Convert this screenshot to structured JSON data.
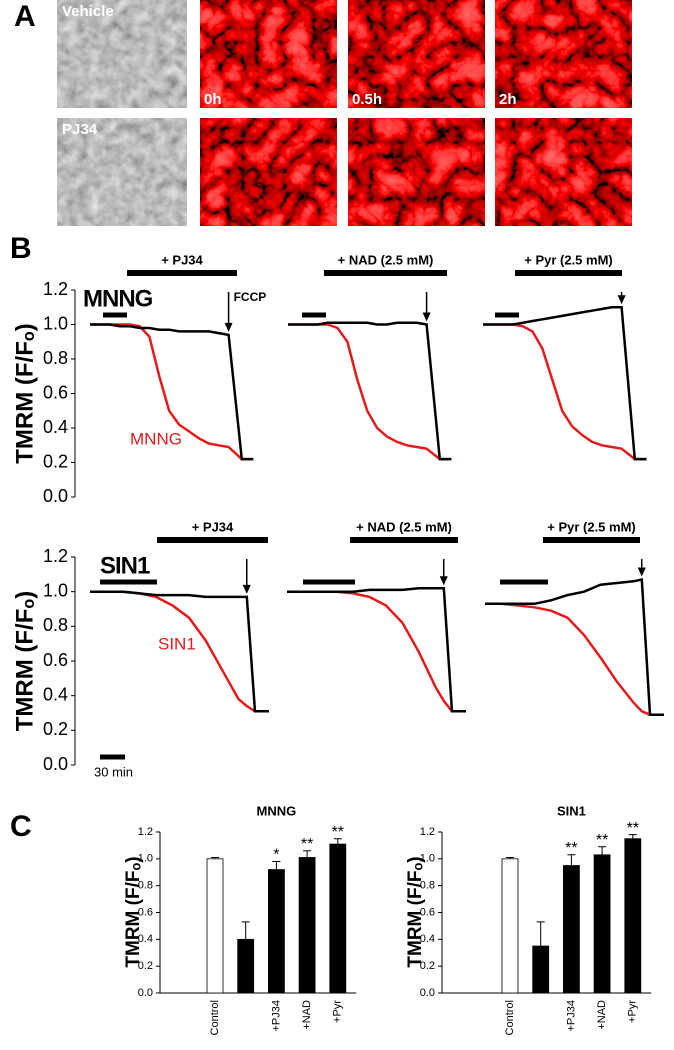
{
  "panel_labels": [
    "A",
    "B",
    "C"
  ],
  "panel_a": {
    "rows": [
      {
        "label": "Vehicle",
        "times": [
          "0h",
          "0.5h",
          "2h"
        ]
      },
      {
        "label": "PJ34"
      }
    ]
  },
  "scale_bar": "30 min",
  "chart_data": [
    {
      "type": "line",
      "title": "MNNG",
      "y_label": "TMRM (F/Fₒ)",
      "treatment": "+ PJ34",
      "arrow_label": "FCCP",
      "x": [
        0,
        12,
        24,
        36,
        48,
        60,
        72,
        84,
        96,
        108,
        120,
        132,
        144,
        156,
        168,
        184,
        198
      ],
      "xlim": [
        0,
        200
      ],
      "ylim": [
        0,
        1.2
      ],
      "yticks": [
        {
          "value": 0,
          "label": "0.0"
        },
        0.2,
        0.4,
        0.6,
        0.8,
        {
          "value": 1,
          "label": "1.0"
        },
        1.2
      ],
      "series": [
        {
          "name": "MNNG",
          "color": "#e41a1c",
          "values": [
            1.0,
            1.0,
            1.0,
            1.0,
            1.0,
            0.99,
            0.93,
            0.7,
            0.5,
            0.42,
            0.38,
            0.34,
            0.31,
            0.3,
            0.29,
            0.22,
            0.22
          ]
        },
        {
          "color": "#000000",
          "values": [
            1.0,
            1.0,
            1.0,
            0.99,
            0.99,
            0.98,
            0.98,
            0.97,
            0.97,
            0.96,
            0.96,
            0.96,
            0.96,
            0.95,
            0.94,
            0.22,
            0.22
          ]
        }
      ]
    },
    {
      "type": "line",
      "treatment": "+ NAD (2.5 mM)",
      "x": [
        0,
        12,
        24,
        36,
        48,
        60,
        72,
        84,
        96,
        108,
        120,
        132,
        144,
        156,
        168,
        184,
        198
      ],
      "xlim": [
        0,
        200
      ],
      "ylim": [
        0,
        1.2
      ],
      "series": [
        {
          "color": "#e41a1c",
          "values": [
            1.0,
            1.0,
            1.0,
            1.0,
            1.0,
            0.98,
            0.9,
            0.68,
            0.5,
            0.4,
            0.35,
            0.32,
            0.3,
            0.29,
            0.28,
            0.22,
            0.22
          ]
        },
        {
          "color": "#000000",
          "values": [
            1.0,
            1.0,
            1.0,
            1.0,
            1.01,
            1.01,
            1.01,
            1.01,
            1.01,
            1.0,
            1.0,
            1.01,
            1.01,
            1.01,
            1.0,
            0.22,
            0.22
          ]
        }
      ]
    },
    {
      "type": "line",
      "treatment": "+ Pyr (2.5 mM)",
      "x": [
        0,
        12,
        24,
        36,
        48,
        60,
        72,
        84,
        96,
        108,
        120,
        132,
        144,
        156,
        168,
        184,
        198
      ],
      "xlim": [
        0,
        200
      ],
      "ylim": [
        0,
        1.2
      ],
      "series": [
        {
          "color": "#e41a1c",
          "values": [
            1.0,
            1.0,
            1.0,
            1.0,
            0.99,
            0.96,
            0.86,
            0.68,
            0.5,
            0.41,
            0.36,
            0.32,
            0.3,
            0.29,
            0.28,
            0.22,
            0.22
          ]
        },
        {
          "color": "#000000",
          "values": [
            1.0,
            1.0,
            1.0,
            1.0,
            1.01,
            1.02,
            1.03,
            1.04,
            1.05,
            1.06,
            1.07,
            1.08,
            1.09,
            1.1,
            1.1,
            0.22,
            0.22
          ]
        }
      ]
    },
    {
      "type": "line",
      "title": "SIN1",
      "y_label": "TMRM (F/Fₒ)",
      "treatment": "+ PJ34",
      "x": [
        0,
        20,
        40,
        60,
        80,
        100,
        120,
        140,
        160,
        180,
        190,
        200,
        217
      ],
      "xlim": [
        0,
        220
      ],
      "ylim": [
        0,
        1.2
      ],
      "yticks": [
        {
          "value": 0,
          "label": "0.0"
        },
        0.2,
        0.4,
        0.6,
        0.8,
        {
          "value": 1,
          "label": "1.0"
        },
        1.2
      ],
      "series": [
        {
          "name": "SIN1",
          "color": "#e41a1c",
          "values": [
            1.0,
            1.0,
            1.0,
            0.99,
            0.97,
            0.92,
            0.85,
            0.72,
            0.55,
            0.38,
            0.34,
            0.31,
            0.31
          ]
        },
        {
          "color": "#000000",
          "values": [
            1.0,
            1.0,
            1.0,
            0.99,
            0.98,
            0.98,
            0.98,
            0.97,
            0.97,
            0.97,
            0.97,
            0.31,
            0.31
          ]
        }
      ]
    },
    {
      "type": "line",
      "treatment": "+ NAD (2.5 mM)",
      "x": [
        0,
        20,
        40,
        60,
        80,
        100,
        120,
        140,
        160,
        180,
        190,
        200,
        217
      ],
      "xlim": [
        0,
        220
      ],
      "ylim": [
        0,
        1.2
      ],
      "series": [
        {
          "color": "#e41a1c",
          "values": [
            1.0,
            1.0,
            1.0,
            1.0,
            0.99,
            0.97,
            0.92,
            0.82,
            0.65,
            0.45,
            0.37,
            0.31,
            0.31
          ]
        },
        {
          "color": "#000000",
          "values": [
            1.0,
            1.0,
            1.0,
            1.0,
            1.0,
            1.01,
            1.01,
            1.01,
            1.02,
            1.02,
            1.02,
            0.31,
            0.31
          ]
        }
      ]
    },
    {
      "type": "line",
      "treatment": "+ Pyr (2.5 mM)",
      "x": [
        0,
        20,
        40,
        60,
        80,
        100,
        120,
        140,
        160,
        180,
        190,
        200,
        217
      ],
      "xlim": [
        0,
        220
      ],
      "ylim": [
        0,
        1.2
      ],
      "series": [
        {
          "color": "#e41a1c",
          "values": [
            0.93,
            0.93,
            0.92,
            0.91,
            0.89,
            0.85,
            0.75,
            0.62,
            0.48,
            0.36,
            0.31,
            0.29,
            0.29
          ]
        },
        {
          "color": "#000000",
          "values": [
            0.93,
            0.93,
            0.93,
            0.93,
            0.95,
            0.98,
            1.0,
            1.04,
            1.05,
            1.06,
            1.07,
            0.29,
            0.29
          ]
        }
      ]
    },
    {
      "type": "bar",
      "title": "MNNG",
      "y_label": "TMRM (F/Fₒ)",
      "categories": [
        "Control",
        null,
        "+PJ34",
        "+NAD",
        "+Pyr"
      ],
      "values": [
        1.0,
        0.4,
        0.92,
        1.01,
        1.11
      ],
      "errors": [
        0.01,
        0.13,
        0.06,
        0.05,
        0.04
      ],
      "annotations": [
        null,
        null,
        "*",
        "**",
        "**"
      ],
      "colors": [
        "#ffffff",
        "#000000",
        "#000000",
        "#000000",
        "#000000"
      ],
      "ylim": [
        0,
        1.2
      ],
      "yticks": [
        {
          "value": 0,
          "label": "0.0"
        },
        0.2,
        0.4,
        0.6,
        0.8,
        {
          "value": 1,
          "label": "1.0"
        },
        1.2
      ]
    },
    {
      "type": "bar",
      "title": "SIN1",
      "y_label": "TMRM (F/Fₒ)",
      "categories": [
        "Control",
        null,
        "+PJ34",
        "+NAD",
        "+Pyr"
      ],
      "values": [
        1.0,
        0.35,
        0.95,
        1.03,
        1.15
      ],
      "errors": [
        0.01,
        0.18,
        0.08,
        0.06,
        0.03
      ],
      "annotations": [
        null,
        null,
        "**",
        "**",
        "**"
      ],
      "colors": [
        "#ffffff",
        "#000000",
        "#000000",
        "#000000",
        "#000000"
      ],
      "ylim": [
        0,
        1.2
      ],
      "yticks": [
        {
          "value": 0,
          "label": "0.0"
        },
        0.2,
        0.4,
        0.6,
        0.8,
        {
          "value": 1,
          "label": "1.0"
        },
        1.2
      ]
    }
  ]
}
